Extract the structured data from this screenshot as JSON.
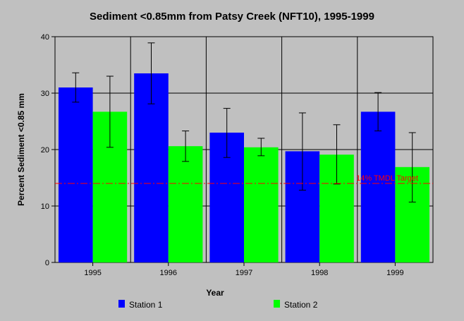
{
  "chart_data": {
    "type": "bar",
    "title": "Sediment <0.85mm from Patsy Creek (NFT10), 1995-1999",
    "xlabel": "Year",
    "ylabel": "Percent Sediment <0.85 mm",
    "categories": [
      "1995",
      "1996",
      "1997",
      "1998",
      "1999"
    ],
    "ylim": [
      0,
      40
    ],
    "yticks": [
      0,
      10,
      20,
      30,
      40
    ],
    "grid": true,
    "legend_position": "bottom",
    "series": [
      {
        "name": "Station 1",
        "color": "#0000ff",
        "values": [
          31.0,
          33.5,
          23.0,
          19.7,
          26.7
        ],
        "err_low": [
          28.4,
          28.1,
          18.6,
          12.8,
          23.3
        ],
        "err_high": [
          33.6,
          38.9,
          27.3,
          26.5,
          30.1
        ]
      },
      {
        "name": "Station 2",
        "color": "#00ff00",
        "values": [
          26.7,
          20.6,
          20.4,
          19.1,
          16.9
        ],
        "err_low": [
          20.4,
          17.9,
          18.9,
          13.9,
          10.7
        ],
        "err_high": [
          33.0,
          23.3,
          22.0,
          24.4,
          23.0
        ]
      }
    ],
    "reference_line": {
      "value": 14,
      "label": "14% TMDL Target",
      "color": "#ff0000"
    }
  }
}
